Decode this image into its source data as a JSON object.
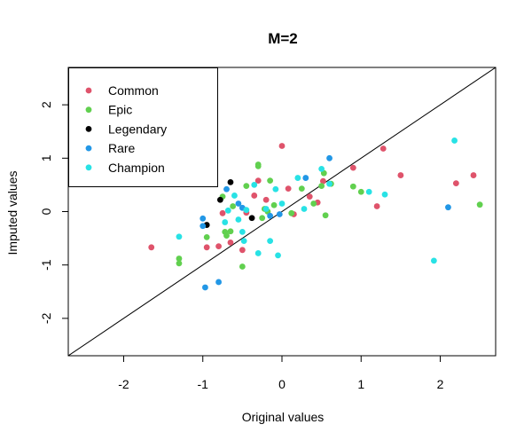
{
  "chart_data": {
    "type": "scatter",
    "title": "M=2",
    "xlabel": "Original values",
    "ylabel": "Imputed values",
    "xlim": [
      -2.7,
      2.7
    ],
    "ylim": [
      -2.7,
      2.7
    ],
    "xticks": [
      "-2",
      "-1",
      "0",
      "1",
      "2"
    ],
    "yticks": [
      "-2",
      "-1",
      "0",
      "1",
      "2"
    ],
    "grid": false,
    "legend_position": "top-left",
    "reference_line": {
      "type": "identity",
      "slope": 1,
      "intercept": 0,
      "color": "#000000"
    },
    "series": [
      {
        "name": "Common",
        "color": "#DF536B",
        "points": [
          [
            -1.65,
            -0.67
          ],
          [
            -0.95,
            -0.67
          ],
          [
            -0.8,
            -0.65
          ],
          [
            -0.75,
            -0.03
          ],
          [
            -0.65,
            -0.58
          ],
          [
            -0.5,
            -0.72
          ],
          [
            -0.45,
            -0.02
          ],
          [
            -0.35,
            0.3
          ],
          [
            -0.3,
            0.58
          ],
          [
            -0.2,
            0.22
          ],
          [
            0.0,
            1.23
          ],
          [
            0.08,
            0.43
          ],
          [
            0.15,
            -0.05
          ],
          [
            0.35,
            0.28
          ],
          [
            0.45,
            0.17
          ],
          [
            0.52,
            0.57
          ],
          [
            0.9,
            0.82
          ],
          [
            1.2,
            0.1
          ],
          [
            1.28,
            1.18
          ],
          [
            1.5,
            0.68
          ],
          [
            2.2,
            0.53
          ],
          [
            2.42,
            0.68
          ]
        ]
      },
      {
        "name": "Epic",
        "color": "#61D04F",
        "points": [
          [
            -1.3,
            -0.88
          ],
          [
            -1.3,
            -0.97
          ],
          [
            -0.95,
            -0.48
          ],
          [
            -0.75,
            0.28
          ],
          [
            -0.72,
            -0.38
          ],
          [
            -0.7,
            -0.45
          ],
          [
            -0.65,
            -0.37
          ],
          [
            -0.62,
            0.1
          ],
          [
            -0.5,
            -1.03
          ],
          [
            -0.45,
            0.48
          ],
          [
            -0.3,
            0.88
          ],
          [
            -0.3,
            0.85
          ],
          [
            -0.25,
            -0.12
          ],
          [
            -0.22,
            0.05
          ],
          [
            -0.18,
            0.0
          ],
          [
            -0.15,
            0.58
          ],
          [
            -0.1,
            0.12
          ],
          [
            0.12,
            -0.03
          ],
          [
            0.25,
            0.43
          ],
          [
            0.4,
            0.15
          ],
          [
            0.5,
            0.48
          ],
          [
            0.53,
            0.72
          ],
          [
            0.55,
            -0.07
          ],
          [
            0.62,
            0.52
          ],
          [
            0.9,
            0.47
          ],
          [
            1.0,
            0.37
          ],
          [
            2.5,
            0.13
          ]
        ]
      },
      {
        "name": "Legendary",
        "color": "#000000",
        "points": [
          [
            -0.95,
            -0.25
          ],
          [
            -0.78,
            0.22
          ],
          [
            -0.65,
            0.55
          ],
          [
            -0.38,
            -0.12
          ]
        ]
      },
      {
        "name": "Rare",
        "color": "#2297E6",
        "points": [
          [
            -1.0,
            -0.13
          ],
          [
            -1.0,
            -0.27
          ],
          [
            -0.97,
            -1.42
          ],
          [
            -0.8,
            -1.32
          ],
          [
            -0.7,
            0.42
          ],
          [
            -0.55,
            0.15
          ],
          [
            -0.5,
            0.07
          ],
          [
            -0.15,
            -0.08
          ],
          [
            -0.03,
            -0.05
          ],
          [
            0.3,
            0.63
          ],
          [
            0.6,
            1.0
          ],
          [
            2.1,
            0.08
          ]
        ]
      },
      {
        "name": "Champion",
        "color": "#28E2E5",
        "points": [
          [
            -1.3,
            -0.47
          ],
          [
            -0.72,
            -0.2
          ],
          [
            -0.68,
            0.02
          ],
          [
            -0.6,
            0.3
          ],
          [
            -0.55,
            -0.15
          ],
          [
            -0.5,
            -0.38
          ],
          [
            -0.48,
            -0.55
          ],
          [
            -0.45,
            0.03
          ],
          [
            -0.35,
            0.5
          ],
          [
            -0.3,
            -0.78
          ],
          [
            -0.2,
            0.05
          ],
          [
            -0.15,
            -0.55
          ],
          [
            -0.08,
            0.42
          ],
          [
            -0.05,
            -0.82
          ],
          [
            0.0,
            0.15
          ],
          [
            0.2,
            0.63
          ],
          [
            0.28,
            0.05
          ],
          [
            0.5,
            0.8
          ],
          [
            0.6,
            0.52
          ],
          [
            1.1,
            0.37
          ],
          [
            1.3,
            0.32
          ],
          [
            1.92,
            -0.92
          ],
          [
            2.18,
            1.33
          ]
        ]
      }
    ]
  }
}
